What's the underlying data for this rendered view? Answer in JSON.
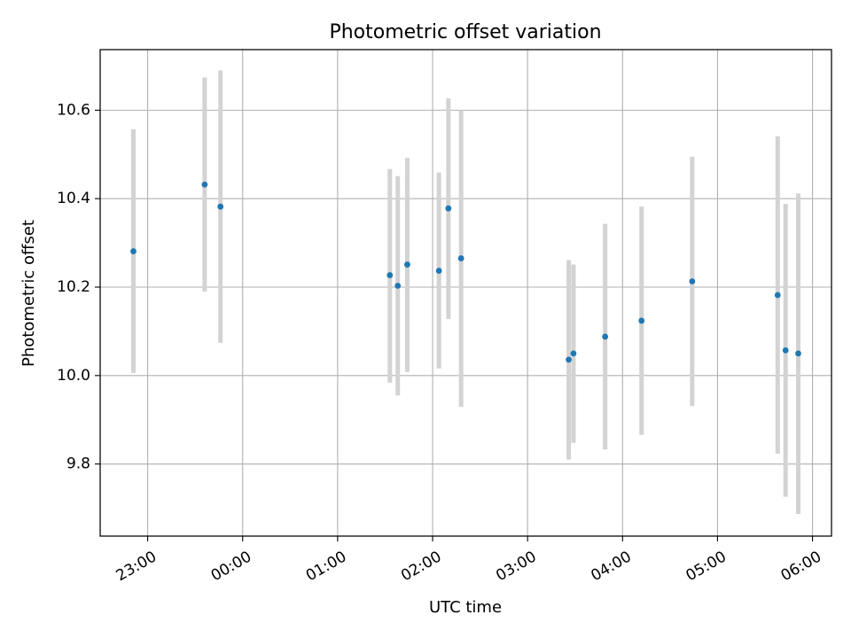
{
  "chart_data": {
    "type": "scatter",
    "title": "Photometric offset variation",
    "xlabel": "UTC time",
    "ylabel": "Photometric offset",
    "x_axis_type": "time",
    "xlim": [
      "22:30",
      "06:12"
    ],
    "ylim": [
      9.637,
      10.737
    ],
    "x_ticks": [
      "23:00",
      "00:00",
      "01:00",
      "02:00",
      "03:00",
      "04:00",
      "05:00",
      "06:00"
    ],
    "y_ticks": [
      9.8,
      10.0,
      10.2,
      10.4,
      10.6
    ],
    "y_tick_labels": [
      "9.8",
      "10.0",
      "10.2",
      "10.4",
      "10.6"
    ],
    "grid": true,
    "legend": "none",
    "series": [
      {
        "marker_color": "#1f77b4",
        "errorbar_color": "#d3d3d3",
        "points": [
          {
            "x": "22:51",
            "y": 10.281,
            "ylow": 10.006,
            "yhigh": 10.557
          },
          {
            "x": "23:36",
            "y": 10.432,
            "ylow": 10.19,
            "yhigh": 10.674
          },
          {
            "x": "23:46",
            "y": 10.382,
            "ylow": 10.074,
            "yhigh": 10.69
          },
          {
            "x": "01:33",
            "y": 10.227,
            "ylow": 9.984,
            "yhigh": 10.467
          },
          {
            "x": "01:38",
            "y": 10.203,
            "ylow": 9.955,
            "yhigh": 10.451
          },
          {
            "x": "01:44",
            "y": 10.251,
            "ylow": 10.008,
            "yhigh": 10.492
          },
          {
            "x": "02:04",
            "y": 10.237,
            "ylow": 10.016,
            "yhigh": 10.459
          },
          {
            "x": "02:10",
            "y": 10.378,
            "ylow": 10.128,
            "yhigh": 10.627
          },
          {
            "x": "02:18",
            "y": 10.265,
            "ylow": 9.929,
            "yhigh": 10.6
          },
          {
            "x": "03:26",
            "y": 10.036,
            "ylow": 9.81,
            "yhigh": 10.261
          },
          {
            "x": "03:29",
            "y": 10.05,
            "ylow": 9.848,
            "yhigh": 10.251
          },
          {
            "x": "03:49",
            "y": 10.088,
            "ylow": 9.833,
            "yhigh": 10.343
          },
          {
            "x": "04:12",
            "y": 10.124,
            "ylow": 9.866,
            "yhigh": 10.382
          },
          {
            "x": "04:44",
            "y": 10.213,
            "ylow": 9.931,
            "yhigh": 10.495
          },
          {
            "x": "05:38",
            "y": 10.182,
            "ylow": 9.823,
            "yhigh": 10.541
          },
          {
            "x": "05:43",
            "y": 10.057,
            "ylow": 9.726,
            "yhigh": 10.388
          },
          {
            "x": "05:51",
            "y": 10.05,
            "ylow": 9.687,
            "yhigh": 10.412
          }
        ]
      }
    ]
  }
}
